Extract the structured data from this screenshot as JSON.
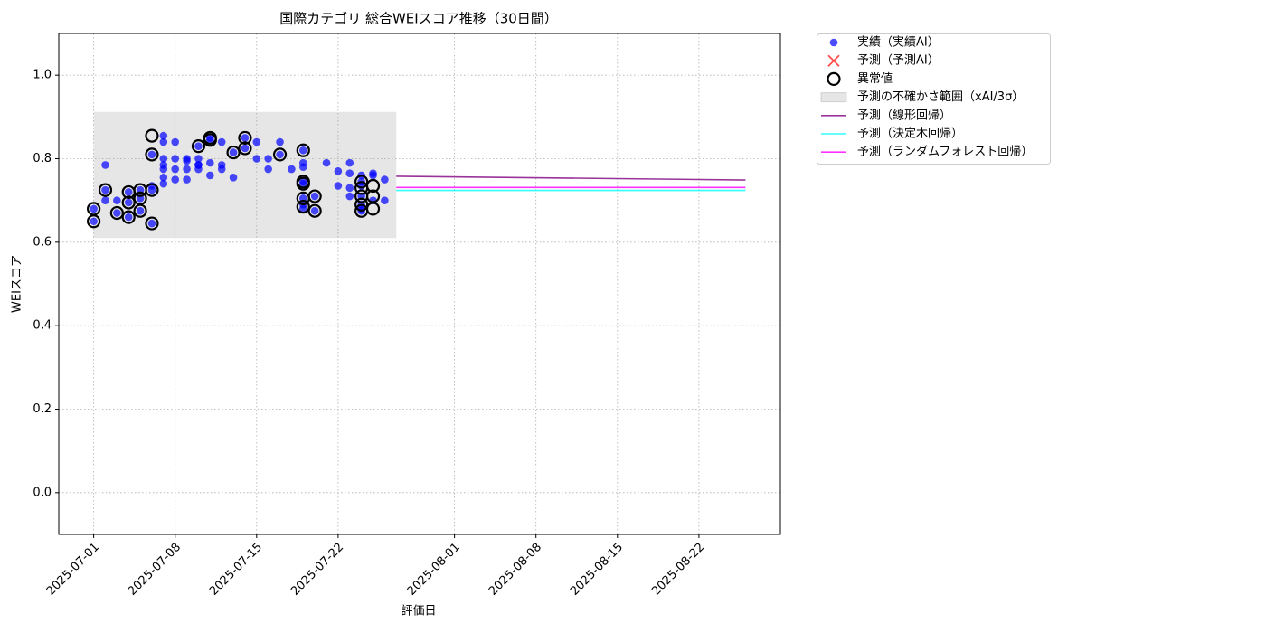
{
  "chart_data": {
    "type": "scatter",
    "title": "国際カテゴリ 総合WEIスコア推移（30日間）",
    "xlabel": "評価日",
    "ylabel": "WEIスコア",
    "xlim": [
      "2025-06-28",
      "2025-08-29"
    ],
    "xticks": [
      "2025-07-01",
      "2025-07-08",
      "2025-07-15",
      "2025-07-22",
      "2025-08-01",
      "2025-08-08",
      "2025-08-15",
      "2025-08-22"
    ],
    "ylim": [
      -0.1,
      1.1
    ],
    "yticks": [
      {
        "value": 0,
        "label": "0.0"
      },
      {
        "value": 0.2,
        "label": "0.2"
      },
      {
        "value": 0.4,
        "label": "0.4"
      },
      {
        "value": 0.6,
        "label": "0.6"
      },
      {
        "value": 0.8,
        "label": "0.8"
      },
      {
        "value": 1,
        "label": "1.0"
      }
    ],
    "grid": true,
    "legend": "outside upper right",
    "series": [
      {
        "name": "実績（実績AI）",
        "kind": "points",
        "marker": "dot",
        "color": "#0000ff",
        "alpha": 0.7,
        "x": [
          "2025-07-01",
          "2025-07-01",
          "2025-07-02",
          "2025-07-02",
          "2025-07-02",
          "2025-07-03",
          "2025-07-03",
          "2025-07-04",
          "2025-07-04",
          "2025-07-04",
          "2025-07-05",
          "2025-07-05",
          "2025-07-05",
          "2025-07-06",
          "2025-07-06",
          "2025-07-06",
          "2025-07-06",
          "2025-07-07",
          "2025-07-07",
          "2025-07-07",
          "2025-07-07",
          "2025-07-07",
          "2025-07-07",
          "2025-07-07",
          "2025-07-08",
          "2025-07-08",
          "2025-07-08",
          "2025-07-08",
          "2025-07-09",
          "2025-07-09",
          "2025-07-09",
          "2025-07-09",
          "2025-07-10",
          "2025-07-10",
          "2025-07-10",
          "2025-07-10",
          "2025-07-10",
          "2025-07-11",
          "2025-07-11",
          "2025-07-11",
          "2025-07-11",
          "2025-07-12",
          "2025-07-12",
          "2025-07-12",
          "2025-07-13",
          "2025-07-13",
          "2025-07-14",
          "2025-07-14",
          "2025-07-15",
          "2025-07-15",
          "2025-07-16",
          "2025-07-16",
          "2025-07-17",
          "2025-07-17",
          "2025-07-18",
          "2025-07-19",
          "2025-07-19",
          "2025-07-19",
          "2025-07-19",
          "2025-07-19",
          "2025-07-19",
          "2025-07-19",
          "2025-07-19",
          "2025-07-20",
          "2025-07-20",
          "2025-07-21",
          "2025-07-22",
          "2025-07-22",
          "2025-07-23",
          "2025-07-23",
          "2025-07-23",
          "2025-07-23",
          "2025-07-24",
          "2025-07-24",
          "2025-07-24",
          "2025-07-24",
          "2025-07-24",
          "2025-07-24",
          "2025-07-24",
          "2025-07-25",
          "2025-07-25",
          "2025-07-25",
          "2025-07-26",
          "2025-07-26"
        ],
        "values": [
          0.65,
          0.68,
          0.7,
          0.785,
          0.725,
          0.7,
          0.67,
          0.72,
          0.66,
          0.695,
          0.705,
          0.725,
          0.675,
          0.735,
          0.645,
          0.725,
          0.81,
          0.855,
          0.8,
          0.84,
          0.775,
          0.755,
          0.74,
          0.785,
          0.775,
          0.75,
          0.84,
          0.8,
          0.775,
          0.75,
          0.8,
          0.795,
          0.83,
          0.785,
          0.8,
          0.785,
          0.775,
          0.76,
          0.85,
          0.845,
          0.79,
          0.84,
          0.775,
          0.785,
          0.755,
          0.815,
          0.85,
          0.825,
          0.84,
          0.8,
          0.8,
          0.775,
          0.84,
          0.81,
          0.775,
          0.705,
          0.82,
          0.79,
          0.74,
          0.68,
          0.69,
          0.78,
          0.745,
          0.71,
          0.675,
          0.79,
          0.77,
          0.735,
          0.79,
          0.765,
          0.73,
          0.71,
          0.675,
          0.69,
          0.745,
          0.71,
          0.76,
          0.735,
          0.68,
          0.7,
          0.76,
          0.765,
          0.75,
          0.7
        ]
      },
      {
        "name": "予測（予測AI）",
        "kind": "points",
        "marker": "x",
        "color": "#ff0000",
        "alpha": 0.7,
        "x": [],
        "values": []
      },
      {
        "name": "異常値",
        "kind": "points",
        "marker": "ring",
        "color": "#000000",
        "alpha": 1,
        "x": [
          "2025-07-01",
          "2025-07-01",
          "2025-07-02",
          "2025-07-03",
          "2025-07-04",
          "2025-07-04",
          "2025-07-04",
          "2025-07-05",
          "2025-07-05",
          "2025-07-05",
          "2025-07-06",
          "2025-07-06",
          "2025-07-06",
          "2025-07-06",
          "2025-07-10",
          "2025-07-11",
          "2025-07-11",
          "2025-07-13",
          "2025-07-14",
          "2025-07-14",
          "2025-07-17",
          "2025-07-19",
          "2025-07-19",
          "2025-07-19",
          "2025-07-19",
          "2025-07-19",
          "2025-07-20",
          "2025-07-20",
          "2025-07-24",
          "2025-07-24",
          "2025-07-24",
          "2025-07-24",
          "2025-07-24",
          "2025-07-25",
          "2025-07-25",
          "2025-07-25"
        ],
        "values": [
          0.65,
          0.68,
          0.725,
          0.67,
          0.72,
          0.66,
          0.695,
          0.705,
          0.725,
          0.675,
          0.645,
          0.725,
          0.81,
          0.855,
          0.83,
          0.85,
          0.845,
          0.815,
          0.85,
          0.825,
          0.81,
          0.82,
          0.74,
          0.705,
          0.685,
          0.745,
          0.71,
          0.675,
          0.73,
          0.71,
          0.675,
          0.69,
          0.745,
          0.735,
          0.71,
          0.68
        ]
      },
      {
        "name": "予測の不確かさ範囲（xAI/3σ）",
        "kind": "band",
        "color": "#808080",
        "alpha": 0.2,
        "x": [
          "2025-07-01",
          "2025-07-27"
        ],
        "lower": [
          0.61,
          0.61
        ],
        "upper": [
          0.912,
          0.912
        ]
      },
      {
        "name": "予測（線形回帰）",
        "kind": "line",
        "color": "#800080",
        "alpha": 0.8,
        "x": [
          "2025-07-27",
          "2025-08-26"
        ],
        "values": [
          0.758,
          0.749
        ]
      },
      {
        "name": "予測（決定木回帰）",
        "kind": "line",
        "color": "#00ffff",
        "alpha": 0.8,
        "x": [
          "2025-07-27",
          "2025-08-26"
        ],
        "values": [
          0.724,
          0.724
        ]
      },
      {
        "name": "予測（ランダムフォレスト回帰）",
        "kind": "line",
        "color": "#ff00ff",
        "alpha": 0.8,
        "x": [
          "2025-07-27",
          "2025-08-26"
        ],
        "values": [
          0.731,
          0.731
        ]
      }
    ]
  }
}
